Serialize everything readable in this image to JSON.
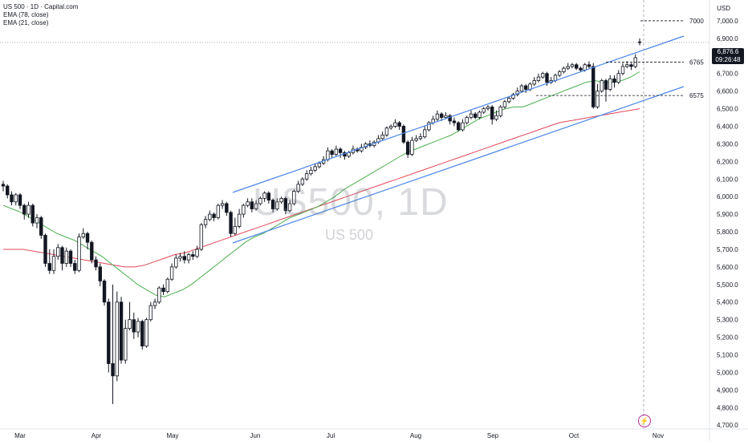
{
  "header": {
    "symbol_line": "US 500 · 1D · Capital.com",
    "ema_long": "EMA (78, close)",
    "ema_short": "EMA (21, close)",
    "currency": "USD",
    "watermark_title": "US500, 1D",
    "watermark_sub": "US 500"
  },
  "price_badge": {
    "price": "6,876.6",
    "countdown": "09:26:48"
  },
  "flash_icon": "lightning-icon",
  "colors": {
    "up": "#ffffff",
    "down": "#131722",
    "channel": "#4a86e8",
    "ema21": "#4caf50",
    "ema78": "#e0485a",
    "axis_text": "#131722"
  },
  "chart_data": {
    "type": "candlestick",
    "y_axis_ticks": [
      "4,700.0",
      "4,800.0",
      "4,900.0",
      "5,000.0",
      "5,100.0",
      "5,200.0",
      "5,300.0",
      "5,400.0",
      "5,500.0",
      "5,600.0",
      "5,700.0",
      "5,800.0",
      "5,900.0",
      "6,000.0",
      "6,100.0",
      "6,200.0",
      "6,300.0",
      "6,400.0",
      "6,500.0",
      "6,600.0",
      "6,700.0",
      "6,800.0",
      "6,900.0",
      "7,000.0"
    ],
    "x_axis_ticks": [
      "Mar",
      "Apr",
      "May",
      "Jun",
      "Jul",
      "Aug",
      "Sep",
      "Oct",
      "Nov"
    ],
    "ylim": [
      4660,
      7100
    ],
    "levels": [
      {
        "label": "7000",
        "value": 7000
      },
      {
        "label": "6765",
        "value": 6765
      },
      {
        "label": "6575",
        "value": 6575
      }
    ],
    "candles": [
      [
        6070,
        6060,
        6090,
        6030
      ],
      [
        6060,
        6010,
        6070,
        5990
      ],
      [
        6010,
        5970,
        6030,
        5950
      ],
      [
        5970,
        6010,
        6020,
        5950
      ],
      [
        6010,
        5950,
        6020,
        5930
      ],
      [
        5950,
        5900,
        5960,
        5870
      ],
      [
        5900,
        5950,
        5970,
        5880
      ],
      [
        5950,
        5850,
        5960,
        5830
      ],
      [
        5850,
        5880,
        5900,
        5820
      ],
      [
        5880,
        5780,
        5890,
        5760
      ],
      [
        5780,
        5620,
        5790,
        5600
      ],
      [
        5620,
        5580,
        5700,
        5560
      ],
      [
        5580,
        5660,
        5700,
        5560
      ],
      [
        5660,
        5710,
        5730,
        5640
      ],
      [
        5710,
        5620,
        5720,
        5580
      ],
      [
        5620,
        5690,
        5710,
        5600
      ],
      [
        5690,
        5620,
        5700,
        5600
      ],
      [
        5620,
        5580,
        5640,
        5560
      ],
      [
        5580,
        5770,
        5790,
        5570
      ],
      [
        5770,
        5790,
        5820,
        5760
      ],
      [
        5790,
        5740,
        5800,
        5700
      ],
      [
        5740,
        5640,
        5750,
        5620
      ],
      [
        5640,
        5600,
        5660,
        5580
      ],
      [
        5600,
        5520,
        5620,
        5490
      ],
      [
        5520,
        5400,
        5530,
        5380
      ],
      [
        5400,
        5050,
        5420,
        5000
      ],
      [
        5050,
        4980,
        5500,
        4820
      ],
      [
        4980,
        5400,
        5460,
        4950
      ],
      [
        5400,
        5070,
        5430,
        5050
      ],
      [
        5070,
        5250,
        5300,
        5050
      ],
      [
        5250,
        5300,
        5400,
        5240
      ],
      [
        5300,
        5230,
        5340,
        5190
      ],
      [
        5230,
        5290,
        5310,
        5200
      ],
      [
        5290,
        5150,
        5300,
        5130
      ],
      [
        5150,
        5300,
        5310,
        5140
      ],
      [
        5300,
        5380,
        5400,
        5290
      ],
      [
        5380,
        5400,
        5420,
        5360
      ],
      [
        5400,
        5480,
        5490,
        5390
      ],
      [
        5480,
        5460,
        5500,
        5440
      ],
      [
        5460,
        5530,
        5540,
        5450
      ],
      [
        5530,
        5600,
        5620,
        5520
      ],
      [
        5600,
        5650,
        5670,
        5590
      ],
      [
        5650,
        5660,
        5680,
        5630
      ],
      [
        5660,
        5640,
        5690,
        5620
      ],
      [
        5640,
        5670,
        5680,
        5620
      ],
      [
        5670,
        5660,
        5690,
        5640
      ],
      [
        5660,
        5700,
        5720,
        5650
      ],
      [
        5700,
        5840,
        5850,
        5690
      ],
      [
        5840,
        5870,
        5890,
        5820
      ],
      [
        5870,
        5900,
        5920,
        5860
      ],
      [
        5900,
        5880,
        5910,
        5860
      ],
      [
        5880,
        5950,
        5960,
        5870
      ],
      [
        5950,
        5960,
        5980,
        5930
      ],
      [
        5960,
        5910,
        5970,
        5890
      ],
      [
        5910,
        5790,
        5920,
        5770
      ],
      [
        5790,
        5830,
        5880,
        5780
      ],
      [
        5830,
        5900,
        5930,
        5820
      ],
      [
        5900,
        5950,
        5960,
        5880
      ],
      [
        5950,
        5970,
        5990,
        5940
      ],
      [
        5970,
        5930,
        5990,
        5910
      ],
      [
        5930,
        5960,
        5980,
        5920
      ],
      [
        5960,
        5990,
        6000,
        5950
      ],
      [
        5990,
        6020,
        6030,
        5970
      ],
      [
        6020,
        5980,
        6030,
        5960
      ],
      [
        5980,
        5930,
        5990,
        5910
      ],
      [
        5930,
        5970,
        5990,
        5920
      ],
      [
        5970,
        5990,
        6000,
        5960
      ],
      [
        5990,
        5920,
        6000,
        5900
      ],
      [
        5920,
        5960,
        5980,
        5910
      ],
      [
        5960,
        6030,
        6040,
        5950
      ],
      [
        6030,
        6070,
        6090,
        6020
      ],
      [
        6070,
        6100,
        6110,
        6060
      ],
      [
        6100,
        6130,
        6150,
        6090
      ],
      [
        6130,
        6150,
        6170,
        6120
      ],
      [
        6150,
        6170,
        6190,
        6140
      ],
      [
        6170,
        6190,
        6200,
        6160
      ],
      [
        6190,
        6210,
        6230,
        6180
      ],
      [
        6210,
        6260,
        6280,
        6200
      ],
      [
        6260,
        6240,
        6270,
        6220
      ],
      [
        6240,
        6270,
        6290,
        6230
      ],
      [
        6270,
        6250,
        6280,
        6220
      ],
      [
        6250,
        6230,
        6260,
        6210
      ],
      [
        6230,
        6250,
        6260,
        6220
      ],
      [
        6250,
        6270,
        6290,
        6240
      ],
      [
        6270,
        6260,
        6280,
        6250
      ],
      [
        6260,
        6280,
        6300,
        6250
      ],
      [
        6280,
        6300,
        6310,
        6270
      ],
      [
        6300,
        6290,
        6320,
        6280
      ],
      [
        6290,
        6310,
        6320,
        6280
      ],
      [
        6310,
        6330,
        6350,
        6300
      ],
      [
        6330,
        6350,
        6370,
        6320
      ],
      [
        6350,
        6390,
        6400,
        6340
      ],
      [
        6390,
        6400,
        6410,
        6380
      ],
      [
        6400,
        6420,
        6440,
        6390
      ],
      [
        6420,
        6400,
        6430,
        6380
      ],
      [
        6400,
        6310,
        6410,
        6300
      ],
      [
        6310,
        6240,
        6320,
        6220
      ],
      [
        6240,
        6320,
        6340,
        6230
      ],
      [
        6320,
        6330,
        6350,
        6310
      ],
      [
        6330,
        6340,
        6360,
        6320
      ],
      [
        6340,
        6380,
        6400,
        6330
      ],
      [
        6380,
        6420,
        6430,
        6370
      ],
      [
        6420,
        6440,
        6460,
        6410
      ],
      [
        6440,
        6470,
        6490,
        6430
      ],
      [
        6470,
        6450,
        6480,
        6430
      ],
      [
        6450,
        6460,
        6480,
        6440
      ],
      [
        6460,
        6430,
        6470,
        6410
      ],
      [
        6430,
        6420,
        6450,
        6400
      ],
      [
        6420,
        6380,
        6430,
        6370
      ],
      [
        6380,
        6420,
        6440,
        6370
      ],
      [
        6420,
        6450,
        6460,
        6410
      ],
      [
        6450,
        6470,
        6490,
        6440
      ],
      [
        6470,
        6450,
        6480,
        6440
      ],
      [
        6450,
        6480,
        6490,
        6440
      ],
      [
        6480,
        6500,
        6510,
        6470
      ],
      [
        6500,
        6510,
        6520,
        6490
      ],
      [
        6510,
        6440,
        6520,
        6410
      ],
      [
        6440,
        6460,
        6490,
        6430
      ],
      [
        6460,
        6510,
        6520,
        6450
      ],
      [
        6510,
        6540,
        6550,
        6500
      ],
      [
        6540,
        6560,
        6570,
        6530
      ],
      [
        6560,
        6580,
        6590,
        6550
      ],
      [
        6580,
        6600,
        6620,
        6570
      ],
      [
        6600,
        6630,
        6640,
        6590
      ],
      [
        6630,
        6610,
        6640,
        6590
      ],
      [
        6610,
        6640,
        6650,
        6600
      ],
      [
        6640,
        6660,
        6680,
        6630
      ],
      [
        6660,
        6680,
        6700,
        6650
      ],
      [
        6680,
        6700,
        6710,
        6670
      ],
      [
        6700,
        6650,
        6710,
        6630
      ],
      [
        6650,
        6660,
        6680,
        6640
      ],
      [
        6660,
        6690,
        6700,
        6650
      ],
      [
        6690,
        6710,
        6720,
        6680
      ],
      [
        6710,
        6730,
        6740,
        6700
      ],
      [
        6730,
        6740,
        6760,
        6720
      ],
      [
        6740,
        6750,
        6760,
        6730
      ],
      [
        6750,
        6730,
        6760,
        6720
      ],
      [
        6730,
        6720,
        6740,
        6710
      ],
      [
        6720,
        6750,
        6760,
        6710
      ],
      [
        6750,
        6740,
        6770,
        6730
      ],
      [
        6740,
        6510,
        6760,
        6500
      ],
      [
        6510,
        6600,
        6640,
        6500
      ],
      [
        6600,
        6660,
        6670,
        6590
      ],
      [
        6660,
        6610,
        6670,
        6540
      ],
      [
        6610,
        6670,
        6690,
        6600
      ],
      [
        6670,
        6650,
        6690,
        6620
      ],
      [
        6650,
        6700,
        6720,
        6640
      ],
      [
        6700,
        6740,
        6760,
        6690
      ],
      [
        6740,
        6750,
        6770,
        6730
      ],
      [
        6750,
        6740,
        6760,
        6720
      ],
      [
        6740,
        6790,
        6810,
        6730
      ],
      [
        6880,
        6877,
        6900,
        6860
      ]
    ],
    "ema21": [
      5950,
      5930,
      5910,
      5880,
      5850,
      5820,
      5790,
      5770,
      5750,
      5720,
      5690,
      5660,
      5620,
      5580,
      5540,
      5500,
      5470,
      5440,
      5430,
      5450,
      5470,
      5500,
      5540,
      5580,
      5620,
      5660,
      5700,
      5740,
      5770,
      5790,
      5820,
      5850,
      5880,
      5900,
      5920,
      5940,
      5970,
      6000,
      6040,
      6070,
      6100,
      6130,
      6160,
      6190,
      6220,
      6250,
      6270,
      6290,
      6310,
      6330,
      6350,
      6380,
      6410,
      6440,
      6460,
      6480,
      6500,
      6510,
      6510,
      6530,
      6550,
      6570,
      6590,
      6610,
      6630,
      6650,
      6660,
      6650,
      6650,
      6660,
      6680,
      6710
    ],
    "ema78": [
      5700,
      5700,
      5700,
      5690,
      5680,
      5670,
      5660,
      5650,
      5640,
      5630,
      5620,
      5610,
      5600,
      5600,
      5610,
      5630,
      5650,
      5670,
      5680,
      5700,
      5720,
      5740,
      5760,
      5780,
      5800,
      5820,
      5840,
      5860,
      5880,
      5900,
      5920,
      5940,
      5960,
      5980,
      6000,
      6020,
      6040,
      6060,
      6080,
      6100,
      6120,
      6140,
      6160,
      6180,
      6200,
      6220,
      6240,
      6260,
      6280,
      6300,
      6320,
      6340,
      6360,
      6380,
      6400,
      6420,
      6430,
      6440,
      6450,
      6460,
      6470,
      6480,
      6490,
      6500
    ]
  }
}
